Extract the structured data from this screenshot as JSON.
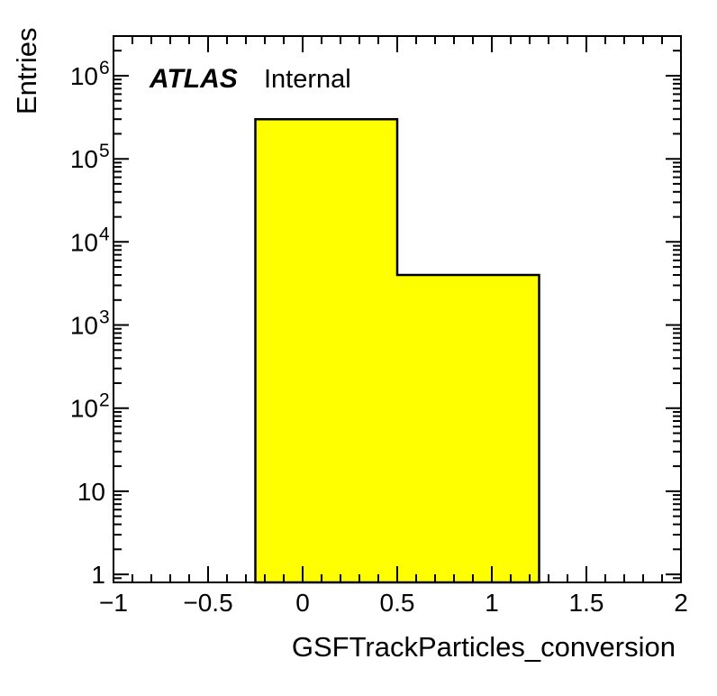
{
  "annotations": {
    "experiment_label": "ATLAS",
    "status_label": "Internal"
  },
  "chart_data": {
    "type": "bar",
    "subtype": "filled-step-histogram",
    "title": "",
    "xlabel": "GSFTrackParticles_conversion",
    "ylabel": "Entries",
    "x_range": [
      -1,
      2
    ],
    "y_scale": "log",
    "y_range": [
      0.8,
      3000000
    ],
    "bin_edges": [
      -1,
      -0.25,
      0.5,
      1.25,
      2
    ],
    "counts": [
      0,
      300000,
      4000,
      0
    ],
    "x_major_ticks": [
      -1,
      -0.5,
      0,
      0.5,
      1,
      1.5,
      2
    ],
    "x_tick_labels": [
      "−1",
      "−0.5",
      "0",
      "0.5",
      "1",
      "1.5",
      "2"
    ],
    "x_major_step": 0.5,
    "x_minor_step": 0.1,
    "y_major_ticks": [
      1,
      10,
      100,
      1000,
      10000,
      100000,
      1000000
    ],
    "y_tick_labels": [
      {
        "mantissa": "1",
        "exponent": ""
      },
      {
        "mantissa": "10",
        "exponent": ""
      },
      {
        "mantissa": "10",
        "exponent": "2"
      },
      {
        "mantissa": "10",
        "exponent": "3"
      },
      {
        "mantissa": "10",
        "exponent": "4"
      },
      {
        "mantissa": "10",
        "exponent": "5"
      },
      {
        "mantissa": "10",
        "exponent": "6"
      }
    ],
    "grid": false,
    "legend": "none",
    "fill_color": "#ffff00",
    "line_color": "#000000",
    "axis_color": "#000000",
    "background_color": "#ffffff"
  }
}
